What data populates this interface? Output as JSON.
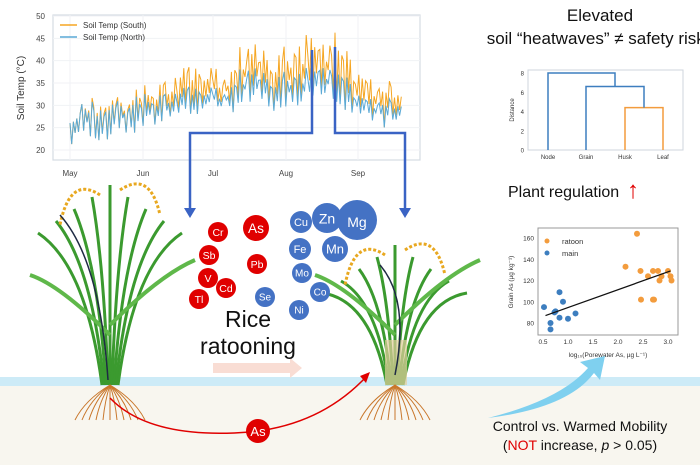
{
  "headline": {
    "line1": "Elevated",
    "line2": "soil “heatwaves” ≠ safety risks"
  },
  "plant_regulation": {
    "label": "Plant regulation",
    "arrow_icon": "up-arrow-icon",
    "arrow_color": "#e00000"
  },
  "process_label": {
    "line1": "Rice",
    "line2": "ratooning"
  },
  "mobility": {
    "line1": "Control vs. Warmed Mobility",
    "paren_open": "(",
    "not": "NOT",
    "rest_a": " increase, ",
    "p": "p",
    "rest_b": " > 0.05)"
  },
  "soil_element": {
    "label": "As",
    "color": "#e00000"
  },
  "elements": {
    "toxic": [
      {
        "label": "Cr"
      },
      {
        "label": "As"
      },
      {
        "label": "Sb"
      },
      {
        "label": "Pb"
      },
      {
        "label": "V"
      },
      {
        "label": "Cd"
      },
      {
        "label": "Tl"
      }
    ],
    "nutrient": [
      {
        "label": "Se"
      },
      {
        "label": "Cu"
      },
      {
        "label": "Zn"
      },
      {
        "label": "Mg"
      },
      {
        "label": "Fe"
      },
      {
        "label": "Mn"
      },
      {
        "label": "Mo"
      },
      {
        "label": "Co"
      },
      {
        "label": "Ni"
      }
    ],
    "toxic_color": "#e00000",
    "nutrient_color": "#4472c4"
  },
  "colors": {
    "south": "#f5a623",
    "north": "#5aa9d6",
    "ratoon": "#f39c3d",
    "main": "#3d7ebf",
    "connector": "#3a63c4",
    "soil": "#f8f6ef",
    "water": "#cdebf7"
  },
  "chart_data": [
    {
      "type": "line",
      "title": "",
      "xlabel": "",
      "ylabel": "Soil Temp (°C)",
      "yticks": [
        "20",
        "25",
        "30",
        "35",
        "40",
        "45",
        "50"
      ],
      "ylim": [
        18,
        50
      ],
      "xticks": [
        "May",
        "Jun",
        "Jul",
        "Aug",
        "Sep"
      ],
      "legend": "top-left",
      "grid": true,
      "series": [
        {
          "name": "Soil Temp (South)",
          "color": "#f5a623",
          "weekly_max": [
            28,
            31,
            32,
            30,
            33,
            32,
            35,
            34,
            36,
            37,
            40,
            39,
            40,
            37,
            43,
            46,
            45,
            42,
            44,
            43,
            47,
            46,
            47,
            48,
            40,
            39,
            36,
            38,
            35
          ]
        },
        {
          "name": "Soil Temp (North)",
          "color": "#5aa9d6",
          "weekly_max": [
            28,
            31,
            31,
            29,
            32,
            31,
            33,
            32,
            33,
            33,
            35,
            34,
            35,
            33,
            38,
            40,
            39,
            37,
            38,
            37,
            39,
            40,
            40,
            40,
            34,
            33,
            32,
            33,
            32
          ]
        },
        {
          "name": "",
          "role": "daily min",
          "values": [
            20,
            22,
            21,
            22,
            23,
            23,
            24,
            25,
            27,
            27,
            28,
            28,
            28,
            29,
            28,
            28,
            29,
            28,
            29,
            29,
            30,
            30,
            30,
            29,
            27,
            26,
            25,
            25,
            25
          ]
        }
      ]
    },
    {
      "type": "dendrogram",
      "ylabel": "Distance",
      "yticks": [
        "0",
        "2",
        "4",
        "6",
        "8"
      ],
      "ylim": [
        0,
        8.3
      ],
      "leaves": [
        "Node",
        "Grain",
        "Husk",
        "Leaf"
      ],
      "merges": [
        {
          "left": "Husk",
          "right": "Leaf",
          "height": 4.4,
          "color": "#f39c3d"
        },
        {
          "left": "Grain",
          "right": "Husk+Leaf",
          "height": 6.6,
          "color": "#3d7ebf"
        },
        {
          "left": "Node",
          "right": "Grain+Husk+Leaf",
          "height": 8.0,
          "color": "#3d7ebf"
        }
      ]
    },
    {
      "type": "scatter",
      "xlabel": "log₁₀(Porewater As, µg L⁻¹)",
      "ylabel": "Grain As (µg kg⁻¹)",
      "xticks": [
        "0.5",
        "1.0",
        "1.5",
        "2.0",
        "2.5",
        "3.0"
      ],
      "yticks": [
        "80",
        "100",
        "120",
        "140",
        "160"
      ],
      "xlim": [
        0.4,
        3.15
      ],
      "ylim": [
        70,
        167
      ],
      "legend": "top-left",
      "series": [
        {
          "name": "ratoon",
          "color": "#f39c3d",
          "points": [
            [
              2.38,
              164
            ],
            [
              2.15,
              133
            ],
            [
              2.45,
              129
            ],
            [
              2.6,
              124
            ],
            [
              2.7,
              129
            ],
            [
              2.8,
              129
            ],
            [
              3.0,
              129
            ],
            [
              2.87,
              124
            ],
            [
              3.05,
              124
            ],
            [
              2.83,
              120
            ],
            [
              3.07,
              120
            ],
            [
              2.46,
              102
            ],
            [
              2.7,
              102
            ],
            [
              2.72,
              102
            ]
          ]
        },
        {
          "name": "main",
          "color": "#3d7ebf",
          "points": [
            [
              0.52,
              95
            ],
            [
              0.65,
              80
            ],
            [
              0.65,
              74
            ],
            [
              0.75,
              91
            ],
            [
              0.73,
              90
            ],
            [
              0.83,
              109
            ],
            [
              0.83,
              85
            ],
            [
              0.9,
              100
            ],
            [
              1.0,
              84
            ],
            [
              1.15,
              89
            ]
          ]
        }
      ],
      "fit_line": [
        [
          0.55,
          87
        ],
        [
          3.05,
          129
        ]
      ]
    }
  ]
}
